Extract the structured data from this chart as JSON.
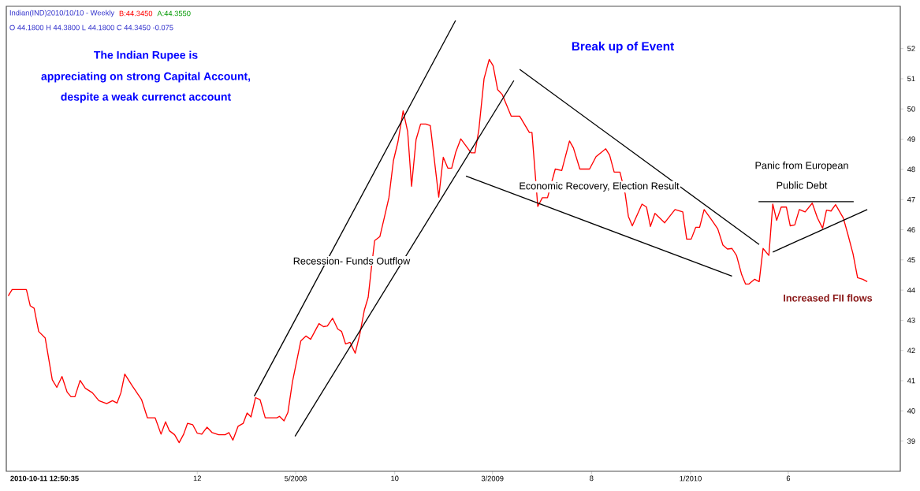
{
  "chart_data": {
    "type": "line",
    "annotations": [
      "Indian(IND)2010/10/10  - Weekly",
      "B:44.3450",
      "A:44.3550",
      "O 44.1800 H 44.3800 L 44.1800 C 44.3450  -0.075",
      "The Indian Rupee is",
      "appreciating on strong Capital Account,",
      "despite a weak currenct account",
      "Break up of Event",
      "Recession- Funds Outflow",
      "Economic Recovery, Election Result",
      "Panic from European",
      "Public Debt",
      "Increased FII flows",
      "2010-10-11 12:50:35"
    ],
    "x": [
      "2007-02-12",
      "2007-02-18",
      "2007-03-02",
      "2007-03-12",
      "2007-03-18",
      "2007-03-24",
      "2007-03-31",
      "2007-04-10",
      "2007-04-21",
      "2007-04-28",
      "2007-05-06",
      "2007-05-14",
      "2007-05-20",
      "2007-05-26",
      "2007-06-03",
      "2007-06-11",
      "2007-06-22",
      "2007-07-02",
      "2007-07-14",
      "2007-07-23",
      "2007-07-30",
      "2007-08-05",
      "2007-08-11",
      "2007-08-22",
      "2007-09-06",
      "2007-09-15",
      "2007-09-27",
      "2007-10-06",
      "2007-10-13",
      "2007-10-19",
      "2007-10-27",
      "2007-11-03",
      "2007-11-10",
      "2007-11-16",
      "2007-11-24",
      "2007-12-01",
      "2007-12-08",
      "2007-12-16",
      "2007-12-24",
      "2008-01-03",
      "2008-01-13",
      "2008-01-19",
      "2008-01-25",
      "2008-02-02",
      "2008-02-10",
      "2008-02-16",
      "2008-02-22",
      "2008-02-29",
      "2008-03-07",
      "2008-03-15",
      "2008-04-02",
      "2008-04-06",
      "2008-04-13",
      "2008-04-19",
      "2008-04-26",
      "2008-05-09",
      "2008-05-17",
      "2008-05-24",
      "2008-06-06",
      "2008-06-13",
      "2008-06-19",
      "2008-06-27",
      "2008-07-05",
      "2008-07-11",
      "2008-07-17",
      "2008-07-24",
      "2008-08-01",
      "2008-08-08",
      "2008-08-15",
      "2008-08-21",
      "2008-08-26",
      "2008-08-31",
      "2008-09-08",
      "2008-09-15",
      "2008-09-22",
      "2008-09-29",
      "2008-10-06",
      "2008-10-14",
      "2008-10-21",
      "2008-10-27",
      "2008-11-03",
      "2008-11-10",
      "2008-11-18",
      "2008-11-25",
      "2008-12-08",
      "2008-12-15",
      "2008-12-22",
      "2008-12-28",
      "2009-01-03",
      "2009-01-11",
      "2009-01-27",
      "2009-02-02",
      "2009-02-08",
      "2009-02-16",
      "2009-02-24",
      "2009-03-02",
      "2009-03-09",
      "2009-03-16",
      "2009-03-30",
      "2009-04-12",
      "2009-04-27",
      "2009-05-01",
      "2009-05-10",
      "2009-05-17",
      "2009-05-25",
      "2009-06-06",
      "2009-06-16",
      "2009-06-28",
      "2009-07-04",
      "2009-07-14",
      "2009-07-29",
      "2009-08-08",
      "2009-08-23",
      "2009-08-29",
      "2009-09-05",
      "2009-09-14",
      "2009-09-22",
      "2009-09-27",
      "2009-10-03",
      "2009-10-18",
      "2009-10-25",
      "2009-10-31",
      "2009-11-07",
      "2009-11-22",
      "2009-12-08",
      "2009-12-20",
      "2009-12-26",
      "2010-01-02",
      "2010-01-09",
      "2010-01-15",
      "2010-01-22",
      "2010-02-02",
      "2010-02-12",
      "2010-02-20",
      "2010-02-27",
      "2010-03-06",
      "2010-03-13",
      "2010-03-21",
      "2010-03-27",
      "2010-04-01",
      "2010-04-10",
      "2010-04-17",
      "2010-04-23",
      "2010-05-02",
      "2010-05-08",
      "2010-05-14",
      "2010-05-21",
      "2010-05-29",
      "2010-06-04",
      "2010-06-11",
      "2010-06-18",
      "2010-06-27",
      "2010-07-08",
      "2010-07-16",
      "2010-07-24",
      "2010-07-30",
      "2010-08-06",
      "2010-08-13",
      "2010-08-25",
      "2010-09-01",
      "2010-09-09",
      "2010-09-16",
      "2010-09-24",
      "2010-10-01"
    ],
    "series": [
      {
        "color": "#ff0000",
        "values": [
          43.81,
          44.02,
          44.02,
          44.02,
          43.48,
          43.4,
          42.63,
          42.42,
          41.03,
          40.78,
          41.14,
          40.62,
          40.47,
          40.47,
          41.01,
          40.75,
          40.6,
          40.34,
          40.24,
          40.34,
          40.26,
          40.6,
          41.22,
          40.85,
          40.37,
          39.77,
          39.77,
          39.23,
          39.64,
          39.34,
          39.21,
          38.95,
          39.23,
          39.59,
          39.54,
          39.26,
          39.23,
          39.46,
          39.28,
          39.21,
          39.21,
          39.28,
          39.03,
          39.49,
          39.59,
          39.93,
          39.8,
          40.44,
          40.37,
          39.77,
          39.77,
          39.82,
          39.67,
          39.95,
          40.96,
          42.32,
          42.48,
          42.37,
          42.89,
          42.79,
          42.81,
          43.07,
          42.71,
          42.63,
          42.22,
          42.27,
          41.91,
          42.53,
          43.33,
          43.76,
          44.74,
          45.64,
          45.77,
          46.41,
          47.06,
          48.29,
          48.91,
          49.94,
          49.25,
          47.44,
          48.99,
          49.5,
          49.5,
          49.45,
          47.08,
          48.4,
          48.04,
          48.04,
          48.55,
          49.01,
          48.55,
          48.55,
          49.32,
          51.0,
          51.64,
          51.43,
          50.64,
          50.48,
          49.76,
          49.76,
          49.22,
          49.22,
          46.77,
          47.06,
          47.06,
          48.01,
          47.96,
          48.94,
          48.71,
          48.01,
          48.01,
          48.42,
          48.68,
          48.47,
          47.91,
          47.91,
          47.19,
          46.44,
          46.13,
          46.85,
          46.75,
          46.11,
          46.54,
          46.23,
          46.67,
          46.59,
          45.69,
          45.69,
          46.08,
          46.08,
          46.67,
          46.34,
          46.03,
          45.49,
          45.36,
          45.38,
          45.15,
          44.51,
          44.2,
          44.2,
          44.36,
          44.28,
          45.38,
          45.15,
          46.85,
          46.31,
          46.75,
          46.75,
          46.13,
          46.16,
          46.67,
          46.59,
          46.88,
          46.39,
          46.05,
          46.65,
          46.62,
          46.83,
          46.39,
          45.85,
          45.2,
          44.41,
          44.36,
          44.28
        ]
      },
      {
        "color": "#000000",
        "x": [
          "2008-02-27",
          "2009-01-03"
        ],
        "values": [
          40.49,
          52.93
        ]
      },
      {
        "color": "#000000",
        "x": [
          "2008-04-30",
          "2009-04-03"
        ],
        "values": [
          39.16,
          50.94
        ]
      },
      {
        "color": "#000000",
        "x": [
          "2009-04-12",
          "2010-04-17"
        ],
        "values": [
          51.31,
          45.51
        ]
      },
      {
        "color": "#000000",
        "x": [
          "2009-01-19",
          "2010-03-06"
        ],
        "values": [
          47.78,
          44.46
        ]
      },
      {
        "color": "#000000",
        "x": [
          "2010-04-16",
          "2010-09-10"
        ],
        "values": [
          46.93,
          46.93
        ]
      },
      {
        "color": "#000000",
        "x": [
          "2010-05-08",
          "2010-10-01"
        ],
        "values": [
          45.26,
          46.67
        ]
      }
    ],
    "xlim": [
      "2007-02-09",
      "2010-11-21"
    ],
    "ylim": [
      38,
      53.4
    ],
    "xticks": [
      {
        "value": "2007-12",
        "label": "12"
      },
      {
        "value": "2008-05",
        "label": "5/2008"
      },
      {
        "value": "2008-10",
        "label": "10"
      },
      {
        "value": "2009-03",
        "label": "3/2009"
      },
      {
        "value": "2009-08",
        "label": "8"
      },
      {
        "value": "2010-01",
        "label": "1/2010"
      },
      {
        "value": "2010-06",
        "label": "6"
      }
    ],
    "yticks": [
      39,
      40,
      41,
      42,
      43,
      44,
      45,
      46,
      47,
      48,
      49,
      50,
      51,
      52
    ]
  }
}
